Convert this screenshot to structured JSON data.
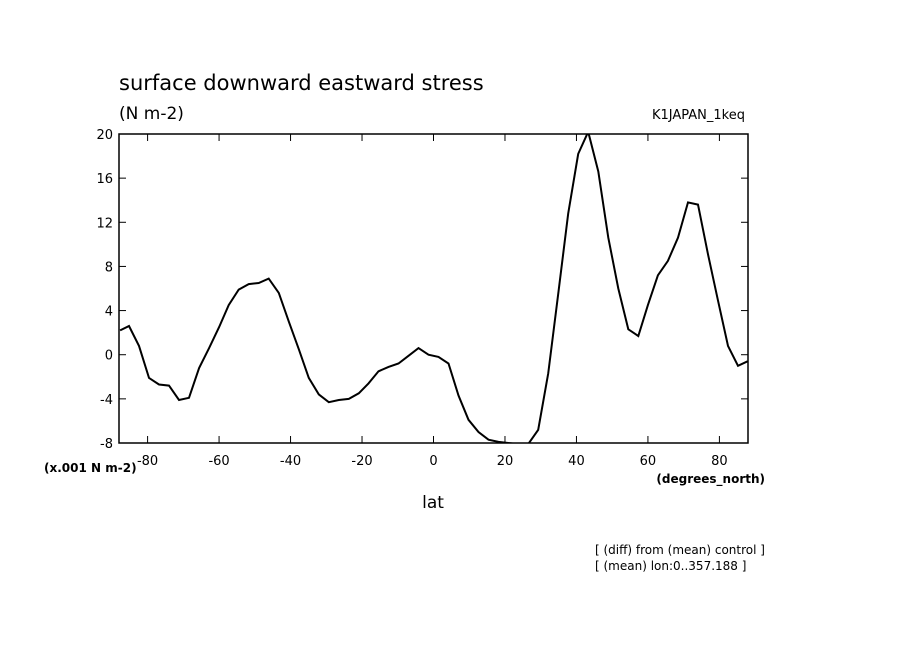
{
  "chart_data": {
    "type": "line",
    "title": "surface downward eastward stress",
    "subtitle": "(N m-2)",
    "experiment": "K1JAPAN_1keq",
    "y_unit_label": "(x.001 N m-2)",
    "x_unit_label": "(degrees_north)",
    "xlabel": "lat",
    "annotations": [
      "[ (diff) from (mean) control ]",
      "[ (mean) lon:0..357.188 ]"
    ],
    "x": [
      -87.7,
      -85.2,
      -82.4,
      -79.6,
      -76.8,
      -74,
      -71.2,
      -68.4,
      -65.6,
      -62.8,
      -60,
      -57.3,
      -54.5,
      -51.7,
      -48.9,
      -46.1,
      -43.3,
      -40.5,
      -37.7,
      -34.9,
      -32.1,
      -29.3,
      -26.5,
      -23.7,
      -20.9,
      -18.2,
      -15.4,
      -12.6,
      -9.8,
      -7,
      -4.2,
      -1.4,
      1.4,
      4.2,
      7,
      9.8,
      12.6,
      15.4,
      18.2,
      20.9,
      23.7,
      26.5,
      29.3,
      32.1,
      34.9,
      37.7,
      40.5,
      43.3,
      46.1,
      48.9,
      51.7,
      54.5,
      57.3,
      60,
      62.8,
      65.6,
      68.4,
      71.2,
      74,
      76.8,
      79.6,
      82.4,
      85.2,
      87.9
    ],
    "series": [
      {
        "color": "#000000",
        "values": [
          2.2,
          2.6,
          0.8,
          -2.1,
          -2.7,
          -2.8,
          -4.1,
          -3.9,
          -1.2,
          0.6,
          2.5,
          4.5,
          5.9,
          6.4,
          6.5,
          6.9,
          5.6,
          3,
          0.5,
          -2.1,
          -3.6,
          -4.3,
          -4.1,
          -4,
          -3.5,
          -2.6,
          -1.5,
          -1.1,
          -0.8,
          -0.1,
          0.6,
          0,
          -0.2,
          -0.8,
          -3.7,
          -5.9,
          -7,
          -7.7,
          -7.9,
          -8,
          -8.1,
          -8.1,
          -6.8,
          -1.7,
          5.5,
          12.8,
          18.2,
          20.2,
          16.6,
          10.6,
          6,
          2.3,
          1.7,
          4.5,
          7.2,
          8.5,
          10.6,
          13.8,
          13.6,
          9.1,
          4.9,
          0.8,
          -1,
          -0.6
        ]
      }
    ],
    "xlim": [
      -88,
      88
    ],
    "ylim": [
      -8,
      20
    ],
    "xticks": [
      -80,
      -60,
      -40,
      -20,
      0,
      20,
      40,
      60,
      80
    ],
    "yticks": [
      -8,
      -4,
      0,
      4,
      8,
      12,
      16,
      20
    ]
  }
}
